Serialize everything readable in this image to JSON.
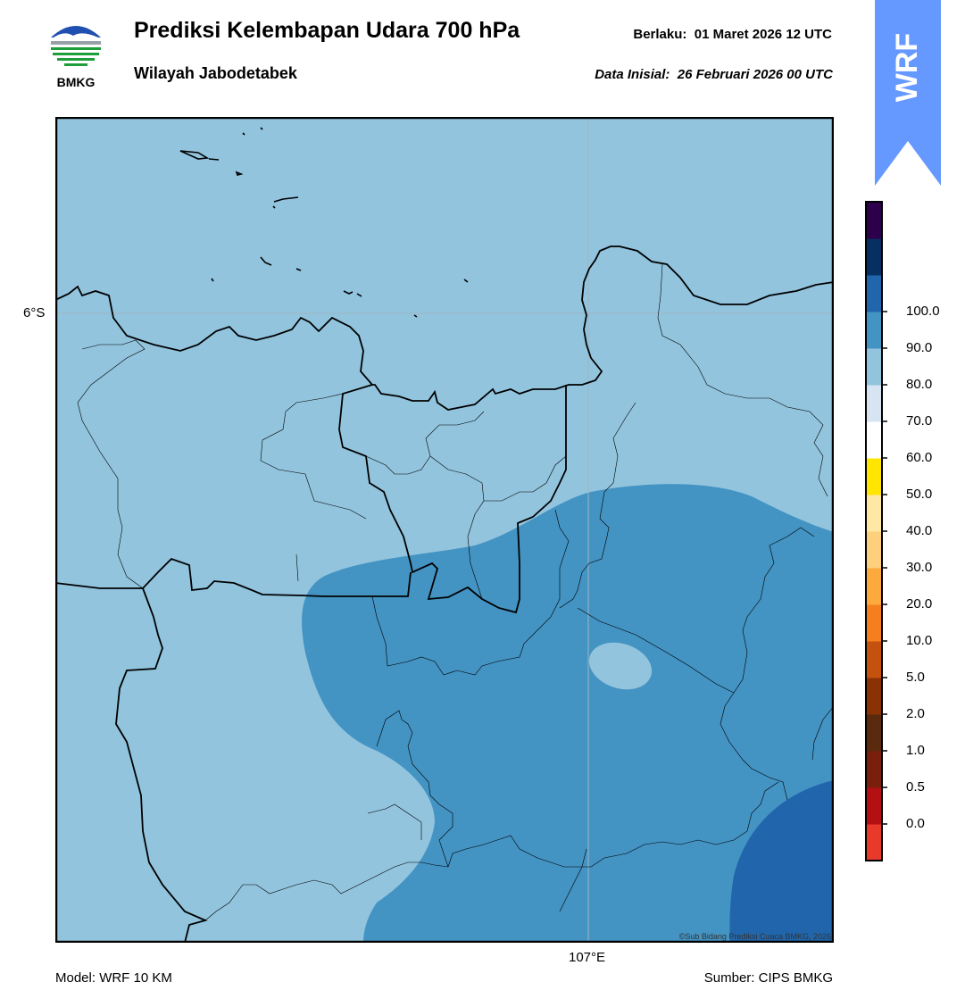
{
  "header": {
    "title": "Prediksi Kelembapan Udara 700 hPa",
    "region": "Wilayah Jabodetabek",
    "valid_label": "Berlaku:",
    "valid_value": "01 Maret 2026 12 UTC",
    "init_label": "Data Inisial:",
    "init_value": "26 Februari 2026 00 UTC"
  },
  "logo": {
    "text": "BMKG",
    "icon": "bmkg-logo"
  },
  "badge": {
    "text": "WRF",
    "color": "#6699ff"
  },
  "map": {
    "lat_label": "6°S",
    "lon_label": "107°E",
    "credit": "©Sub Bidang Prediksi Cuaca BMKG, 2026",
    "colors": {
      "band_60_70": "#92c4de",
      "band_70_80": "#4393c3",
      "band_80_90": "#2166ac",
      "coast_line": "#000000"
    }
  },
  "colorbar": {
    "bands": [
      {
        "color": "#e8392b"
      },
      {
        "color": "#b40f13"
      },
      {
        "color": "#7a1f0c"
      },
      {
        "color": "#5a2a0e"
      },
      {
        "color": "#8b3106"
      },
      {
        "color": "#c5510e"
      },
      {
        "color": "#f57f1f"
      },
      {
        "color": "#fcaa3d"
      },
      {
        "color": "#fdd07e"
      },
      {
        "color": "#fee8a3"
      },
      {
        "color": "#ffe500"
      },
      {
        "color": "#ffffff"
      },
      {
        "color": "#d6e5f1"
      },
      {
        "color": "#92c4de"
      },
      {
        "color": "#4393c3"
      },
      {
        "color": "#2166ac"
      },
      {
        "color": "#053061"
      },
      {
        "color": "#2d004b"
      }
    ],
    "ticks": [
      "0.0",
      "0.5",
      "1.0",
      "2.0",
      "5.0",
      "10.0",
      "20.0",
      "30.0",
      "40.0",
      "50.0",
      "60.0",
      "70.0",
      "80.0",
      "90.0",
      "100.0"
    ]
  },
  "footer": {
    "model": "Model: WRF 10 KM",
    "source": "Sumber: CIPS BMKG"
  }
}
